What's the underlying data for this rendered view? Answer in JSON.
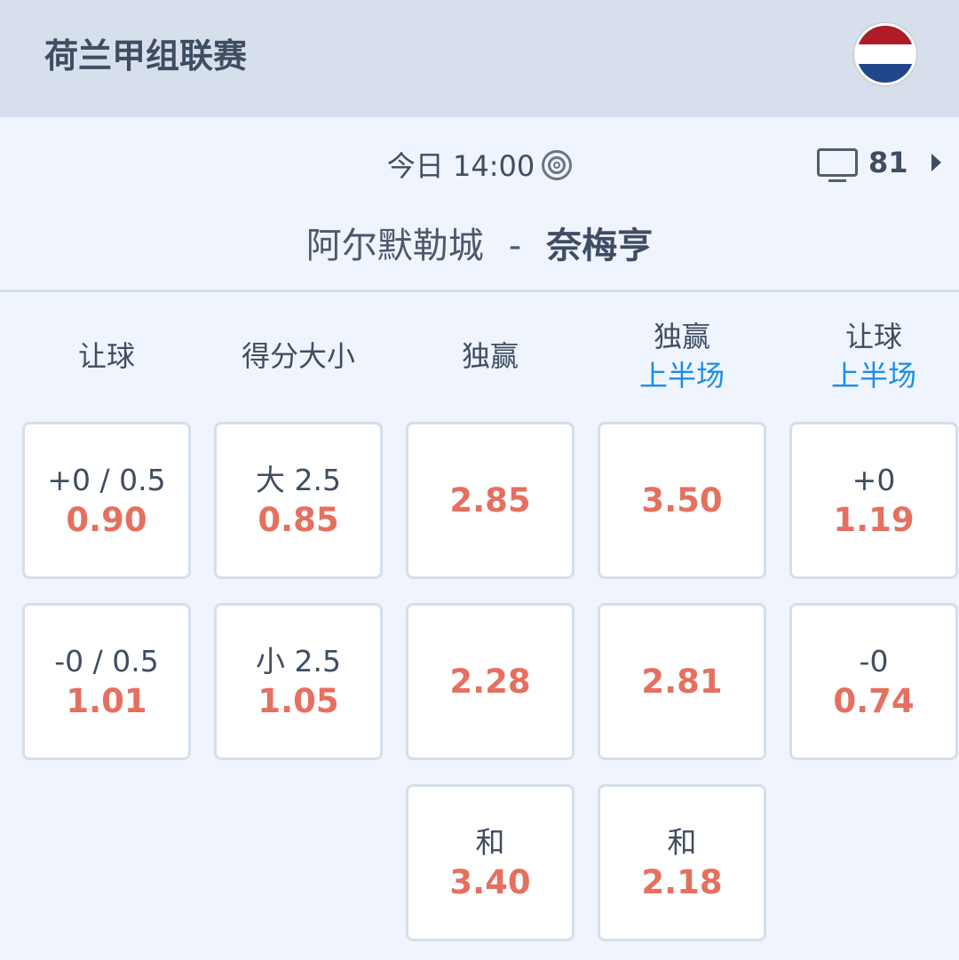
{
  "header": {
    "league": "荷兰甲组联赛",
    "flag_colors": [
      "#ae1c28",
      "#ffffff",
      "#21468b"
    ]
  },
  "match": {
    "time": "今日 14:00",
    "tv_count": "81",
    "home": "阿尔默勒城",
    "separator": "-",
    "away": "奈梅亨"
  },
  "columns": [
    {
      "title": "让球",
      "sub": ""
    },
    {
      "title": "得分大小",
      "sub": ""
    },
    {
      "title": "独赢",
      "sub": ""
    },
    {
      "title": "独赢",
      "sub": "上半场"
    },
    {
      "title": "让球",
      "sub": "上半场"
    }
  ],
  "cells": [
    [
      {
        "label": "+0 / 0.5",
        "odds": "0.90"
      },
      {
        "label": "-0 / 0.5",
        "odds": "1.01"
      }
    ],
    [
      {
        "label": "大 2.5",
        "odds": "0.85"
      },
      {
        "label": "小 2.5",
        "odds": "1.05"
      }
    ],
    [
      {
        "label": "",
        "odds": "2.85"
      },
      {
        "label": "",
        "odds": "2.28"
      },
      {
        "label": "和",
        "odds": "3.40"
      }
    ],
    [
      {
        "label": "",
        "odds": "3.50"
      },
      {
        "label": "",
        "odds": "2.81"
      },
      {
        "label": "和",
        "odds": "2.18"
      }
    ],
    [
      {
        "label": "+0",
        "odds": "1.19"
      },
      {
        "label": "-0",
        "odds": "0.74"
      }
    ]
  ],
  "colors": {
    "odds": "#e5705f",
    "accent": "#1e8ce6",
    "header_bg": "#d7dfec"
  }
}
